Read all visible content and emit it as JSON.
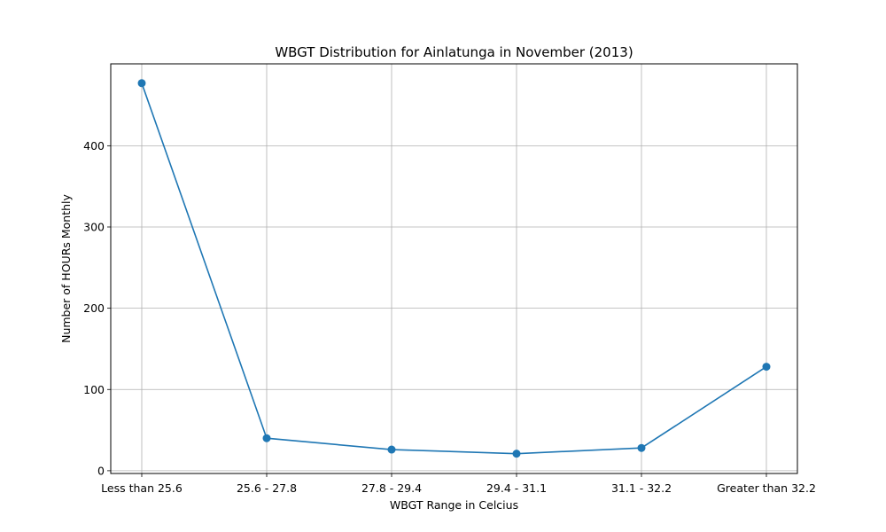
{
  "chart_data": {
    "type": "line",
    "title": "WBGT Distribution for Ainlatunga in November (2013)",
    "xlabel": "WBGT Range in Celcius",
    "ylabel": "Number of HOURs Monthly",
    "categories": [
      "Less than 25.6",
      "25.6 - 27.8",
      "27.8 - 29.4",
      "29.4 - 31.1",
      "31.1 - 32.2",
      "Greater than 32.2"
    ],
    "series": [
      {
        "values": [
          477,
          40,
          26,
          21,
          28,
          128
        ],
        "color": "#1f77b4"
      }
    ],
    "yticks": [
      0,
      100,
      200,
      300,
      400
    ],
    "ylim": [
      -3.4,
      500.8
    ],
    "grid": true,
    "legend": "none"
  }
}
